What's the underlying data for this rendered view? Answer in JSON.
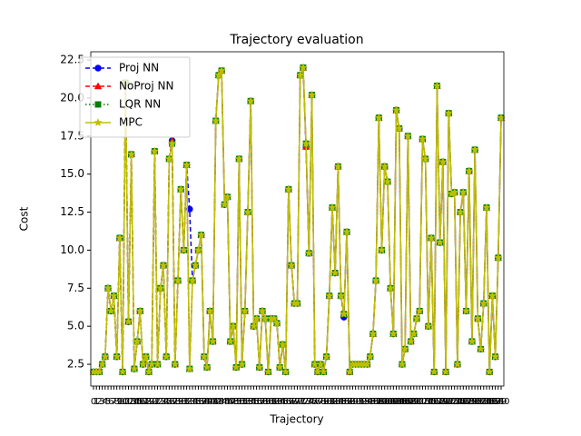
{
  "chart_data": {
    "type": "line",
    "title": "Trajectory evaluation",
    "x_label": "Trajectory",
    "y_label": "Cost",
    "categories": [
      "0",
      "1",
      "2",
      "3",
      "4",
      "5",
      "6",
      "7",
      "8",
      "9",
      "10",
      "11",
      "12",
      "13",
      "14",
      "15",
      "16",
      "17",
      "18",
      "19",
      "20",
      "21",
      "22",
      "23",
      "24",
      "25",
      "26",
      "27",
      "28",
      "29",
      "30",
      "31",
      "32",
      "33",
      "34",
      "35",
      "36",
      "37",
      "38",
      "39",
      "40",
      "41",
      "42",
      "43",
      "44",
      "45",
      "46",
      "47",
      "48",
      "49",
      "50",
      "51",
      "52",
      "53",
      "54",
      "55",
      "56",
      "57",
      "58",
      "59",
      "60",
      "61",
      "62",
      "63",
      "64",
      "65",
      "66",
      "67",
      "68",
      "69",
      "70",
      "71",
      "72",
      "73",
      "74",
      "75",
      "76",
      "77",
      "78",
      "79",
      "80",
      "81",
      "82",
      "83",
      "84",
      "85",
      "86",
      "87",
      "88",
      "89",
      "90",
      "91",
      "92",
      "93",
      "94",
      "95",
      "96",
      "97",
      "98",
      "99",
      "100",
      "101",
      "102",
      "103",
      "104",
      "105",
      "106",
      "107",
      "108",
      "109",
      "110",
      "111",
      "112",
      "113",
      "114",
      "115",
      "116",
      "117",
      "118",
      "119",
      "120",
      "121",
      "122",
      "123",
      "124",
      "125",
      "126",
      "127",
      "128",
      "129",
      "130",
      "131",
      "132",
      "133",
      "134",
      "135",
      "136",
      "137",
      "138",
      "139",
      "140"
    ],
    "series": [
      {
        "name": "Proj NN",
        "color": "#0000ff",
        "linestyle": "dashed",
        "marker": "circle",
        "values": [
          2,
          2,
          2,
          2.5,
          3,
          7.5,
          6,
          7,
          3,
          10.8,
          2,
          21,
          5.3,
          16.3,
          2.2,
          4,
          6,
          2.5,
          3,
          2,
          2.5,
          16.5,
          2.5,
          7.5,
          9,
          3,
          16,
          17.2,
          2.5,
          8,
          14,
          10,
          15.6,
          12.7,
          8,
          9,
          10,
          11,
          3,
          2.3,
          6,
          4,
          18.5,
          21.5,
          21.8,
          13,
          13.5,
          4,
          5,
          2.3,
          16,
          2.5,
          6,
          12.5,
          19.8,
          5,
          5.5,
          2.3,
          6,
          5.5,
          2,
          5.5,
          5.5,
          5.2,
          2.3,
          3.8,
          2,
          14,
          9,
          6.5,
          6.5,
          21.5,
          22,
          16.8,
          9.8,
          20.2,
          2.5,
          2,
          2.5,
          2,
          3,
          7,
          12.8,
          8.5,
          15.5,
          7,
          5.6,
          11.2,
          2,
          2.5,
          2.5,
          2.5,
          2.5,
          2.5,
          2.5,
          3,
          4.5,
          8,
          18.7,
          10,
          15.5,
          14.5,
          7.5,
          4.5,
          19.2,
          18,
          2.5,
          3.5,
          17.5,
          4,
          4.5,
          5.5,
          6,
          17.3,
          16,
          5,
          10.8,
          2,
          20.8,
          10.5,
          15.8,
          2,
          19,
          13.7,
          13.8,
          2.5,
          12.5,
          13.8,
          6,
          15.2,
          4,
          16.6,
          5.5,
          3.5,
          6.5,
          12.8,
          2,
          7,
          3,
          9.5,
          18.7
        ]
      },
      {
        "name": "NoProj NN",
        "color": "#ff0000",
        "linestyle": "dashed",
        "marker": "triangle",
        "values": [
          2,
          2,
          2,
          2.5,
          3,
          7.5,
          6,
          7,
          3,
          10.8,
          2,
          21,
          5.3,
          16.3,
          2.2,
          4,
          6,
          2.5,
          3,
          2,
          2.5,
          16.5,
          2.5,
          7.5,
          9,
          3,
          16,
          17.2,
          2.5,
          8,
          14,
          10,
          15.6,
          2.2,
          8,
          9,
          10,
          11,
          3,
          2.3,
          6,
          4,
          18.5,
          21.5,
          21.8,
          13,
          13.5,
          4,
          5,
          2.3,
          16,
          2.5,
          6,
          12.5,
          19.8,
          5,
          5.5,
          2.3,
          6,
          5.5,
          2,
          5.5,
          5.5,
          5.2,
          2.3,
          3.8,
          2,
          14,
          9,
          6.5,
          6.5,
          21.5,
          22,
          16.8,
          9.8,
          20.2,
          2.5,
          2,
          2.5,
          2,
          3,
          7,
          12.8,
          8.5,
          15.5,
          7,
          5.8,
          11.2,
          2,
          2.5,
          2.5,
          2.5,
          2.5,
          2.5,
          2.5,
          3,
          4.5,
          8,
          18.7,
          10,
          15.5,
          14.5,
          7.5,
          4.5,
          19.2,
          18,
          2.5,
          3.5,
          17.5,
          4,
          4.5,
          5.5,
          6,
          17.3,
          16,
          5,
          10.8,
          2,
          20.8,
          10.5,
          15.8,
          2,
          19,
          13.7,
          13.8,
          2.5,
          12.5,
          13.8,
          6,
          15.2,
          4,
          16.6,
          5.5,
          3.5,
          6.5,
          12.8,
          2,
          7,
          3,
          9.5,
          18.7
        ]
      },
      {
        "name": "LQR NN",
        "color": "#008000",
        "linestyle": "dotted",
        "marker": "square",
        "values": [
          2,
          2,
          2,
          2.5,
          3,
          7.5,
          6,
          7,
          3,
          10.8,
          2,
          21,
          5.3,
          16.3,
          2.2,
          4,
          6,
          2.5,
          3,
          2,
          2.5,
          16.5,
          2.5,
          7.5,
          9,
          3,
          16,
          17,
          2.5,
          8,
          14,
          10,
          15.6,
          2.2,
          8,
          9,
          10,
          11,
          3,
          2.3,
          6,
          4,
          18.5,
          21.5,
          21.8,
          13,
          13.5,
          4,
          5,
          2.3,
          16,
          2.5,
          6,
          12.5,
          19.8,
          5,
          5.5,
          2.3,
          6,
          5.5,
          2,
          5.5,
          5.5,
          5.2,
          2.3,
          3.8,
          2,
          14,
          9,
          6.5,
          6.5,
          21.5,
          22,
          17,
          9.8,
          20.2,
          2.5,
          2,
          2.5,
          2,
          3,
          7,
          12.8,
          8.5,
          15.5,
          7,
          5.8,
          11.2,
          2,
          2.5,
          2.5,
          2.5,
          2.5,
          2.5,
          2.5,
          3,
          4.5,
          8,
          18.7,
          10,
          15.5,
          14.5,
          7.5,
          4.5,
          19.2,
          18,
          2.5,
          3.5,
          17.5,
          4,
          4.5,
          5.5,
          6,
          17.3,
          16,
          5,
          10.8,
          2,
          20.8,
          10.5,
          15.8,
          2,
          19,
          13.7,
          13.8,
          2.5,
          12.5,
          13.8,
          6,
          15.2,
          4,
          16.6,
          5.5,
          3.5,
          6.5,
          12.8,
          2,
          7,
          3,
          9.5,
          18.7
        ]
      },
      {
        "name": "MPC",
        "color": "#bfbf00",
        "linestyle": "solid",
        "marker": "star",
        "values": [
          2,
          2,
          2,
          2.5,
          3,
          7.5,
          6,
          7,
          3,
          10.8,
          2,
          21,
          5.3,
          16.3,
          2.2,
          4,
          6,
          2.5,
          3,
          2,
          2.5,
          16.5,
          2.5,
          7.5,
          9,
          3,
          16,
          17,
          2.5,
          8,
          14,
          10,
          15.6,
          2.2,
          8,
          9,
          10,
          11,
          3,
          2.3,
          6,
          4,
          18.5,
          21.5,
          21.8,
          13,
          13.5,
          4,
          5,
          2.3,
          16,
          2.5,
          6,
          12.5,
          19.8,
          5,
          5.5,
          2.3,
          6,
          5.5,
          2,
          5.5,
          5.5,
          5.2,
          2.3,
          3.8,
          2,
          14,
          9,
          6.5,
          6.5,
          21.5,
          22,
          17,
          9.8,
          20.2,
          2.5,
          2,
          2.5,
          2,
          3,
          7,
          12.8,
          8.5,
          15.5,
          7,
          5.8,
          11.2,
          2,
          2.5,
          2.5,
          2.5,
          2.5,
          2.5,
          2.5,
          3,
          4.5,
          8,
          18.7,
          10,
          15.5,
          14.5,
          7.5,
          4.5,
          19.2,
          18,
          2.5,
          3.5,
          17.5,
          4,
          4.5,
          5.5,
          6,
          17.3,
          16,
          5,
          10.8,
          2,
          20.8,
          10.5,
          15.8,
          2,
          19,
          13.7,
          13.8,
          2.5,
          12.5,
          13.8,
          6,
          15.2,
          4,
          16.6,
          5.5,
          3.5,
          6.5,
          12.8,
          2,
          7,
          3,
          9.5,
          18.7
        ]
      }
    ],
    "ylim": [
      1.07,
      23.04
    ],
    "yticks": [
      {
        "value": 2.5,
        "label": "2.5"
      },
      {
        "value": 5,
        "label": "5.0"
      },
      {
        "value": 7.5,
        "label": "7.5"
      },
      {
        "value": 10,
        "label": "10.0"
      },
      {
        "value": 12.5,
        "label": "12.5"
      },
      {
        "value": 15,
        "label": "15.0"
      },
      {
        "value": 17.5,
        "label": "17.5"
      },
      {
        "value": 20,
        "label": "20.0"
      },
      {
        "value": 22.5,
        "label": "22.5"
      }
    ],
    "grid": false,
    "legend": "upper left"
  }
}
